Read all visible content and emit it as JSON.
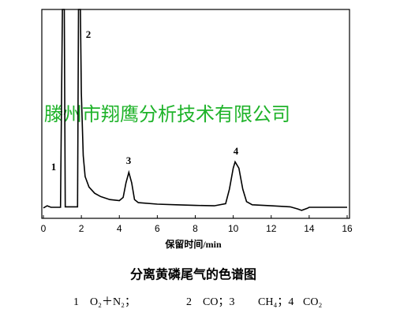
{
  "chart_data": {
    "type": "line",
    "title": "分离黄磷尾气的色谱图",
    "xlabel": "保留时间/min",
    "xlim": [
      0,
      16
    ],
    "xticks": [
      0,
      2,
      4,
      6,
      8,
      10,
      12,
      14,
      16
    ],
    "ylim": [
      0,
      100
    ],
    "x": [
      0,
      0.2,
      0.4,
      0.9,
      1.0,
      1.1,
      1.15,
      1.8,
      1.85,
      1.95,
      2.0,
      2.1,
      2.2,
      2.4,
      2.7,
      3.0,
      3.5,
      4.0,
      4.2,
      4.35,
      4.5,
      4.65,
      4.8,
      5.0,
      6,
      7,
      8,
      9,
      9.6,
      9.8,
      10.0,
      10.1,
      10.3,
      10.5,
      10.7,
      11,
      12,
      13,
      13.4,
      13.6,
      13.9,
      14,
      15,
      16
    ],
    "series": [
      {
        "color": "#000000",
        "values": [
          5.0,
          6.0,
          5.3,
          5.3,
          100,
          100,
          5.5,
          5.5,
          100,
          100,
          60,
          30,
          20,
          15,
          12,
          10.5,
          9,
          8.5,
          10,
          17,
          22,
          17,
          9,
          7.5,
          6.8,
          6.5,
          6.2,
          6,
          7,
          14,
          24,
          27,
          24,
          14,
          8,
          6.5,
          6,
          5.5,
          4.5,
          3.8,
          4.8,
          5.3,
          5.3,
          5.3
        ]
      }
    ],
    "annotations": [
      "1",
      "2",
      "3",
      "4"
    ],
    "notes": [
      "1　O₂＋N₂；",
      "2　CO；3",
      "CH₄；4",
      "CO₂"
    ]
  },
  "watermark": "滕州市翔鹰分析技术有限公司"
}
